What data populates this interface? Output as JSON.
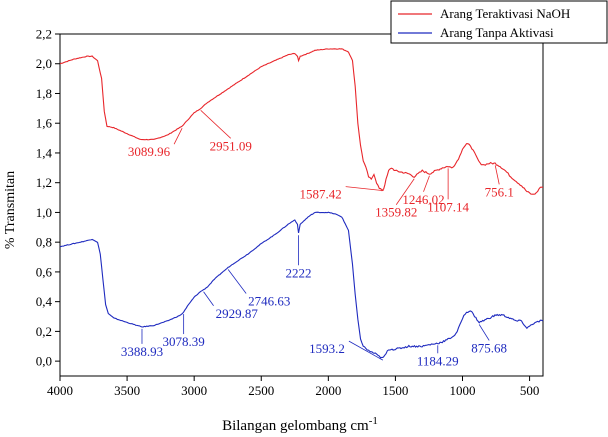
{
  "chart_data": {
    "type": "line",
    "xlabel": "Bilangan gelombang cm",
    "xlabel_superscript": "-1",
    "ylabel": "% Transmitan",
    "xlim": [
      4000,
      400
    ],
    "ylim": [
      -0.1,
      2.2
    ],
    "x_ticks": [
      4000,
      3500,
      3000,
      2500,
      2000,
      1500,
      1000,
      500
    ],
    "y_ticks": [
      "0,0",
      "0,2",
      "0,4",
      "0,6",
      "0,8",
      "1,0",
      "1,2",
      "1,4",
      "1,6",
      "1,8",
      "2,0",
      "2,2"
    ],
    "y_tick_values": [
      0.0,
      0.2,
      0.4,
      0.6,
      0.8,
      1.0,
      1.2,
      1.4,
      1.6,
      1.8,
      2.0,
      2.2
    ],
    "legend_position": "top-right",
    "series": [
      {
        "name": "Arang Teraktivasi NaOH",
        "color": "#e8262b",
        "points": [
          [
            4000,
            2.0
          ],
          [
            3900,
            2.03
          ],
          [
            3800,
            2.05
          ],
          [
            3760,
            2.05
          ],
          [
            3720,
            2.02
          ],
          [
            3690,
            1.9
          ],
          [
            3670,
            1.68
          ],
          [
            3650,
            1.58
          ],
          [
            3600,
            1.57
          ],
          [
            3500,
            1.53
          ],
          [
            3400,
            1.49
          ],
          [
            3300,
            1.49
          ],
          [
            3200,
            1.52
          ],
          [
            3089.96,
            1.58
          ],
          [
            3050,
            1.62
          ],
          [
            3000,
            1.67
          ],
          [
            2951.09,
            1.7
          ],
          [
            2900,
            1.74
          ],
          [
            2800,
            1.8
          ],
          [
            2700,
            1.86
          ],
          [
            2600,
            1.92
          ],
          [
            2500,
            1.98
          ],
          [
            2400,
            2.02
          ],
          [
            2300,
            2.06
          ],
          [
            2250,
            2.07
          ],
          [
            2230,
            2.05
          ],
          [
            2222,
            2.02
          ],
          [
            2210,
            2.05
          ],
          [
            2150,
            2.07
          ],
          [
            2100,
            2.09
          ],
          [
            2000,
            2.1
          ],
          [
            1900,
            2.1
          ],
          [
            1850,
            2.08
          ],
          [
            1820,
            2.02
          ],
          [
            1800,
            1.85
          ],
          [
            1780,
            1.6
          ],
          [
            1760,
            1.45
          ],
          [
            1740,
            1.35
          ],
          [
            1720,
            1.3
          ],
          [
            1700,
            1.24
          ],
          [
            1680,
            1.22
          ],
          [
            1660,
            1.26
          ],
          [
            1640,
            1.2
          ],
          [
            1620,
            1.16
          ],
          [
            1600,
            1.15
          ],
          [
            1587.42,
            1.16
          ],
          [
            1570,
            1.22
          ],
          [
            1550,
            1.28
          ],
          [
            1530,
            1.3
          ],
          [
            1500,
            1.28
          ],
          [
            1450,
            1.27
          ],
          [
            1400,
            1.26
          ],
          [
            1359.82,
            1.24
          ],
          [
            1330,
            1.26
          ],
          [
            1300,
            1.28
          ],
          [
            1246.02,
            1.26
          ],
          [
            1200,
            1.28
          ],
          [
            1150,
            1.3
          ],
          [
            1107.14,
            1.31
          ],
          [
            1080,
            1.3
          ],
          [
            1050,
            1.33
          ],
          [
            1020,
            1.38
          ],
          [
            1000,
            1.43
          ],
          [
            970,
            1.46
          ],
          [
            940,
            1.45
          ],
          [
            900,
            1.38
          ],
          [
            870,
            1.33
          ],
          [
            840,
            1.32
          ],
          [
            800,
            1.33
          ],
          [
            756.1,
            1.33
          ],
          [
            720,
            1.31
          ],
          [
            680,
            1.28
          ],
          [
            640,
            1.24
          ],
          [
            600,
            1.21
          ],
          [
            560,
            1.18
          ],
          [
            520,
            1.14
          ],
          [
            480,
            1.12
          ],
          [
            450,
            1.13
          ],
          [
            420,
            1.17
          ],
          [
            400,
            1.17
          ]
        ]
      },
      {
        "name": "Arang Tanpa Aktivasi",
        "color": "#1f2bbf",
        "points": [
          [
            4000,
            0.77
          ],
          [
            3900,
            0.79
          ],
          [
            3800,
            0.81
          ],
          [
            3760,
            0.82
          ],
          [
            3720,
            0.8
          ],
          [
            3700,
            0.72
          ],
          [
            3680,
            0.55
          ],
          [
            3660,
            0.38
          ],
          [
            3640,
            0.32
          ],
          [
            3600,
            0.29
          ],
          [
            3500,
            0.26
          ],
          [
            3388.93,
            0.23
          ],
          [
            3300,
            0.24
          ],
          [
            3200,
            0.27
          ],
          [
            3100,
            0.31
          ],
          [
            3078.39,
            0.33
          ],
          [
            3050,
            0.37
          ],
          [
            3000,
            0.43
          ],
          [
            2950,
            0.47
          ],
          [
            2929.87,
            0.48
          ],
          [
            2900,
            0.5
          ],
          [
            2850,
            0.55
          ],
          [
            2800,
            0.59
          ],
          [
            2746.63,
            0.63
          ],
          [
            2700,
            0.66
          ],
          [
            2600,
            0.72
          ],
          [
            2500,
            0.79
          ],
          [
            2400,
            0.85
          ],
          [
            2300,
            0.92
          ],
          [
            2250,
            0.95
          ],
          [
            2230,
            0.92
          ],
          [
            2222,
            0.86
          ],
          [
            2210,
            0.92
          ],
          [
            2150,
            0.97
          ],
          [
            2100,
            1.0
          ],
          [
            2000,
            1.0
          ],
          [
            1950,
            0.99
          ],
          [
            1900,
            0.97
          ],
          [
            1850,
            0.88
          ],
          [
            1820,
            0.65
          ],
          [
            1800,
            0.45
          ],
          [
            1780,
            0.28
          ],
          [
            1760,
            0.15
          ],
          [
            1740,
            0.1
          ],
          [
            1700,
            0.07
          ],
          [
            1650,
            0.05
          ],
          [
            1620,
            0.03
          ],
          [
            1593.2,
            0.02
          ],
          [
            1570,
            0.05
          ],
          [
            1550,
            0.08
          ],
          [
            1500,
            0.08
          ],
          [
            1450,
            0.09
          ],
          [
            1400,
            0.1
          ],
          [
            1350,
            0.1
          ],
          [
            1300,
            0.1
          ],
          [
            1250,
            0.11
          ],
          [
            1184.29,
            0.12
          ],
          [
            1150,
            0.13
          ],
          [
            1100,
            0.15
          ],
          [
            1050,
            0.18
          ],
          [
            1020,
            0.24
          ],
          [
            1000,
            0.29
          ],
          [
            970,
            0.33
          ],
          [
            940,
            0.34
          ],
          [
            900,
            0.29
          ],
          [
            875.68,
            0.26
          ],
          [
            850,
            0.27
          ],
          [
            800,
            0.29
          ],
          [
            750,
            0.31
          ],
          [
            700,
            0.31
          ],
          [
            650,
            0.29
          ],
          [
            600,
            0.27
          ],
          [
            560,
            0.27
          ],
          [
            520,
            0.22
          ],
          [
            480,
            0.25
          ],
          [
            450,
            0.26
          ],
          [
            420,
            0.27
          ],
          [
            400,
            0.27
          ]
        ]
      }
    ],
    "annotations": [
      {
        "text": "3089.96",
        "x": 3089.96,
        "y": 1.58,
        "series": 0
      },
      {
        "text": "2951.09",
        "x": 2951.09,
        "y": 1.7,
        "series": 0
      },
      {
        "text": "1587.42",
        "x": 1587.42,
        "y": 1.16,
        "series": 0
      },
      {
        "text": "1359.82",
        "x": 1359.82,
        "y": 1.24,
        "series": 0
      },
      {
        "text": "1246.02",
        "x": 1246.02,
        "y": 1.26,
        "series": 0
      },
      {
        "text": "1107.14",
        "x": 1107.14,
        "y": 1.31,
        "series": 0
      },
      {
        "text": "756.1",
        "x": 756.1,
        "y": 1.33,
        "series": 0
      },
      {
        "text": "3388.93",
        "x": 3388.93,
        "y": 0.23,
        "series": 1
      },
      {
        "text": "3078.39",
        "x": 3078.39,
        "y": 0.33,
        "series": 1
      },
      {
        "text": "2929.87",
        "x": 2929.87,
        "y": 0.48,
        "series": 1
      },
      {
        "text": "2746.63",
        "x": 2746.63,
        "y": 0.63,
        "series": 1
      },
      {
        "text": "2222",
        "x": 2222,
        "y": 0.86,
        "series": 1
      },
      {
        "text": "1593.2",
        "x": 1593.2,
        "y": 0.02,
        "series": 1
      },
      {
        "text": "1184.29",
        "x": 1184.29,
        "y": 0.12,
        "series": 1
      },
      {
        "text": "875.68",
        "x": 875.68,
        "y": 0.26,
        "series": 1
      }
    ]
  }
}
